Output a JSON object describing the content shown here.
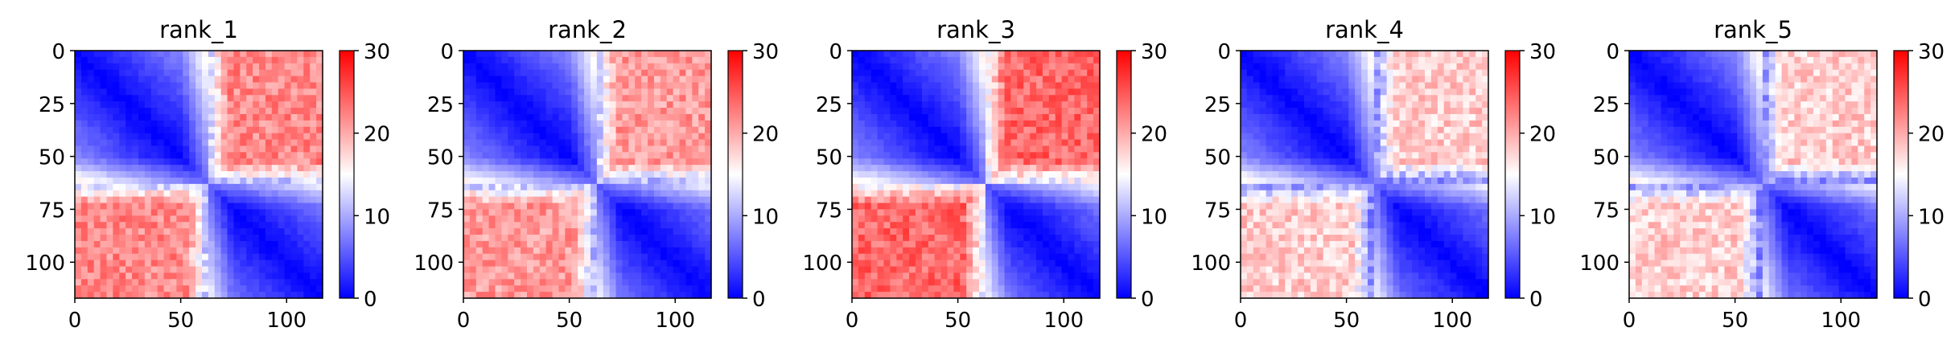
{
  "chart_data": [
    {
      "type": "heatmap",
      "title": "rank_1",
      "x_ticks": [
        0,
        50,
        100
      ],
      "y_ticks": [
        0,
        25,
        50,
        75,
        100
      ],
      "xlim": [
        0,
        117
      ],
      "ylim": [
        117,
        0
      ],
      "n": 117,
      "domain_split": 62,
      "colorbar": {
        "ticks": [
          0,
          10,
          20,
          30
        ],
        "min": 0,
        "max": 30,
        "colors": [
          "#0000ff",
          "#ffffff",
          "#ff0000"
        ]
      },
      "off_diagonal_level": 22,
      "off_diagonal_intensity": "moderate"
    },
    {
      "type": "heatmap",
      "title": "rank_2",
      "x_ticks": [
        0,
        50,
        100
      ],
      "y_ticks": [
        0,
        25,
        50,
        75,
        100
      ],
      "xlim": [
        0,
        117
      ],
      "ylim": [
        117,
        0
      ],
      "n": 117,
      "domain_split": 62,
      "colorbar": {
        "ticks": [
          0,
          10,
          20,
          30
        ],
        "min": 0,
        "max": 30,
        "colors": [
          "#0000ff",
          "#ffffff",
          "#ff0000"
        ]
      },
      "off_diagonal_level": 21,
      "off_diagonal_intensity": "moderate"
    },
    {
      "type": "heatmap",
      "title": "rank_3",
      "x_ticks": [
        0,
        50,
        100
      ],
      "y_ticks": [
        0,
        25,
        50,
        75,
        100
      ],
      "xlim": [
        0,
        117
      ],
      "ylim": [
        117,
        0
      ],
      "n": 117,
      "domain_split": 62,
      "colorbar": {
        "ticks": [
          0,
          10,
          20,
          30
        ],
        "min": 0,
        "max": 30,
        "colors": [
          "#0000ff",
          "#ffffff",
          "#ff0000"
        ]
      },
      "off_diagonal_level": 24,
      "off_diagonal_intensity": "strong"
    },
    {
      "type": "heatmap",
      "title": "rank_4",
      "x_ticks": [
        0,
        50,
        100
      ],
      "y_ticks": [
        0,
        25,
        50,
        75,
        100
      ],
      "xlim": [
        0,
        117
      ],
      "ylim": [
        117,
        0
      ],
      "n": 117,
      "domain_split": 62,
      "colorbar": {
        "ticks": [
          0,
          10,
          20,
          30
        ],
        "min": 0,
        "max": 30,
        "colors": [
          "#0000ff",
          "#ffffff",
          "#ff0000"
        ]
      },
      "off_diagonal_level": 18,
      "off_diagonal_intensity": "weak"
    },
    {
      "type": "heatmap",
      "title": "rank_5",
      "x_ticks": [
        0,
        50,
        100
      ],
      "y_ticks": [
        0,
        25,
        50,
        75,
        100
      ],
      "xlim": [
        0,
        117
      ],
      "ylim": [
        117,
        0
      ],
      "n": 117,
      "domain_split": 62,
      "colorbar": {
        "ticks": [
          0,
          10,
          20,
          30
        ],
        "min": 0,
        "max": 30,
        "colors": [
          "#0000ff",
          "#ffffff",
          "#ff0000"
        ]
      },
      "off_diagonal_level": 18,
      "off_diagonal_intensity": "weak"
    }
  ]
}
